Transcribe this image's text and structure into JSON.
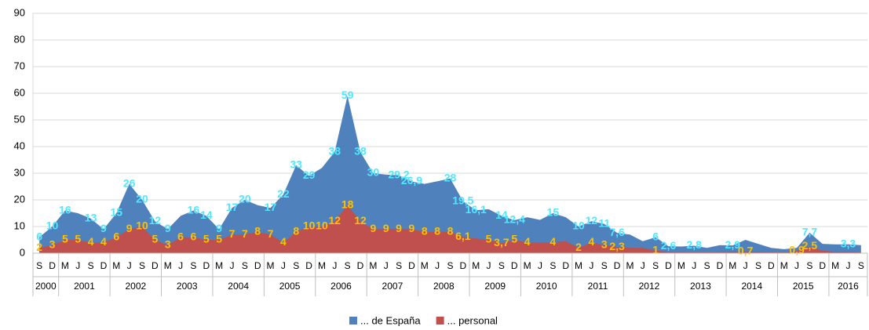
{
  "chart_data": {
    "type": "area",
    "categories": [
      "S",
      "D",
      "M",
      "J",
      "S",
      "D",
      "M",
      "J",
      "S",
      "D",
      "M",
      "J",
      "S",
      "D",
      "M",
      "J",
      "S",
      "D",
      "M",
      "J",
      "S",
      "D",
      "M",
      "J",
      "S",
      "D",
      "M",
      "J",
      "S",
      "D",
      "M",
      "J",
      "S",
      "D",
      "M",
      "J",
      "S",
      "D",
      "M",
      "J",
      "S",
      "D",
      "M",
      "J",
      "S",
      "D",
      "M",
      "J",
      "S",
      "D",
      "M",
      "J",
      "S",
      "D",
      "M",
      "J",
      "S",
      "D",
      "M",
      "J",
      "S",
      "D",
      "M",
      "J",
      "S"
    ],
    "years": [
      "2000",
      "2001",
      "2002",
      "2003",
      "2004",
      "2005",
      "2006",
      "2007",
      "2008",
      "2009",
      "2010",
      "2011",
      "2012",
      "2013",
      "2014",
      "2015",
      "2016"
    ],
    "ylim": [
      0,
      90
    ],
    "yticks": [
      0,
      10,
      20,
      30,
      40,
      50,
      60,
      70,
      80,
      90
    ],
    "grid": true,
    "legend": "bottom",
    "series": [
      {
        "name": "... de España",
        "color": "#4f81bd",
        "label_color": "#4fe8ff",
        "values": [
          6,
          10,
          16,
          15,
          13,
          9,
          15,
          26,
          20,
          12,
          9,
          14,
          16,
          14,
          9,
          17,
          20,
          18,
          17,
          22,
          33,
          29,
          32,
          38,
          59,
          38,
          30,
          29.5,
          29.2,
          26.9,
          26,
          27,
          28,
          19.5,
          16.1,
          16.5,
          14,
          12.4,
          13.5,
          12.5,
          15,
          13.5,
          10,
          12,
          11,
          7.6,
          7,
          4.5,
          6,
          2.6,
          2.5,
          2.8,
          2,
          3,
          2.9,
          5,
          3.5,
          2,
          1.5,
          2,
          7.7,
          3.5,
          3.3,
          3.3,
          3
        ],
        "value_labels": [
          "6",
          "10",
          "16",
          null,
          "13",
          "9",
          "15",
          "26",
          "20",
          "12",
          "9",
          null,
          "16",
          "14",
          "9",
          "17",
          "20",
          null,
          "17",
          "22",
          "33",
          "29",
          null,
          "38",
          "59",
          "38",
          "30",
          null,
          "29,2",
          "26,9",
          null,
          null,
          "28",
          "19,5",
          "16,1",
          null,
          "14",
          "12,4",
          null,
          null,
          "15",
          null,
          "10",
          "12",
          "11",
          "7,6",
          null,
          null,
          "6",
          "2,6",
          null,
          "2,8",
          null,
          null,
          "2,9",
          null,
          null,
          null,
          null,
          null,
          "7,7",
          null,
          null,
          "3,3",
          null
        ]
      },
      {
        "name": "... personal",
        "color": "#c0504d",
        "label_color": "#ffc000",
        "values": [
          2,
          3,
          5,
          5,
          4,
          4,
          6,
          9,
          10,
          5,
          3,
          6,
          6,
          5,
          5,
          7,
          7,
          8,
          7,
          4,
          8,
          10,
          10,
          12,
          18,
          12,
          9,
          9,
          9,
          9,
          8,
          8,
          8,
          6.1,
          5.5,
          5,
          3.7,
          5,
          4,
          4,
          4,
          4.5,
          2,
          4,
          3,
          2.3,
          2,
          2,
          1,
          0.5,
          0.3,
          0.3,
          0.3,
          0.3,
          0.5,
          0.7,
          0.5,
          0.3,
          0.3,
          0.9,
          2.5,
          1,
          0.5,
          0.5,
          0.3
        ],
        "value_labels": [
          "2",
          "3",
          "5",
          "5",
          "4",
          "4",
          "6",
          "9",
          "10",
          "5",
          "3",
          "6",
          "6",
          "5",
          "5",
          "7",
          "7",
          "8",
          "7",
          "4",
          "8",
          "10",
          "10",
          "12",
          "18",
          "12",
          "9",
          "9",
          "9",
          "9",
          "8",
          "8",
          "8",
          "6,1",
          null,
          "5",
          "3,7",
          "5",
          "4",
          null,
          "4",
          null,
          "2",
          "4",
          "3",
          "2,3",
          null,
          null,
          "1",
          null,
          null,
          null,
          null,
          null,
          null,
          "0,7",
          null,
          null,
          null,
          "0,9",
          "2,5",
          null,
          null,
          null,
          null
        ]
      }
    ]
  }
}
